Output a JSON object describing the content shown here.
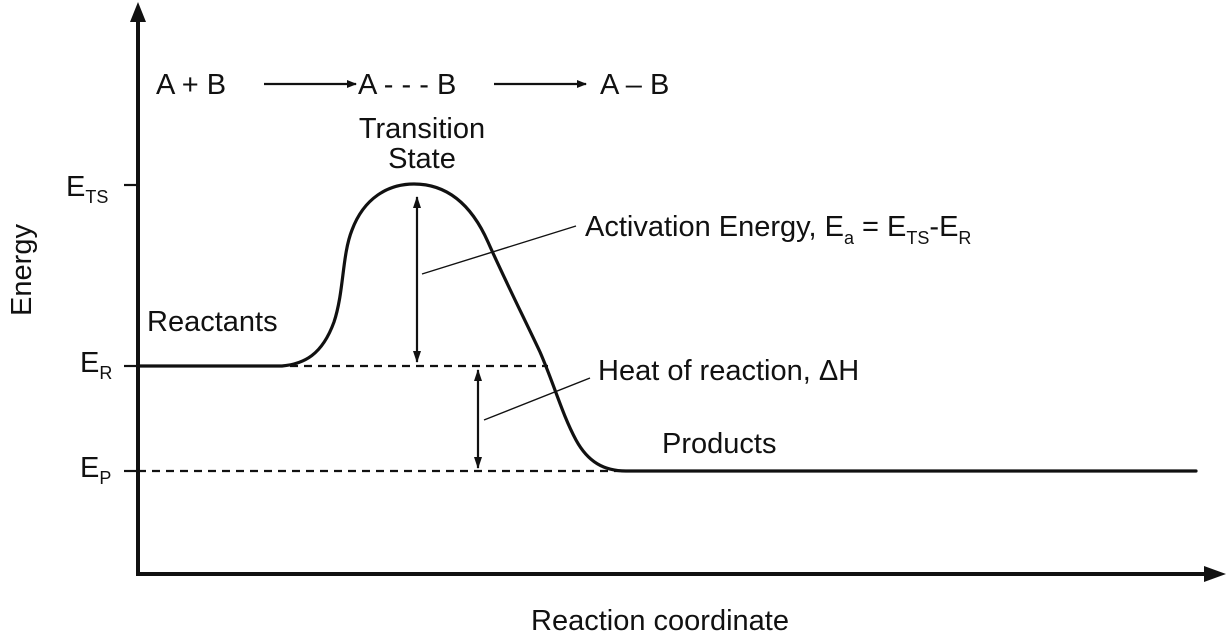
{
  "axes": {
    "x_label": "Reaction coordinate",
    "y_label": "Energy"
  },
  "energy_levels": {
    "ts": {
      "main": "E",
      "sub": "TS"
    },
    "r": {
      "main": "E",
      "sub": "R"
    },
    "p": {
      "main": "E",
      "sub": "P"
    }
  },
  "reaction": {
    "reactants": "A + B",
    "intermediate": "A - - - B",
    "product": "A – B"
  },
  "labels": {
    "transition_state_line1": "Transition",
    "transition_state_line2": "State",
    "reactants": "Reactants",
    "products": "Products",
    "activation_energy": {
      "prefix": "Activation Energy, E",
      "sub_a": "a",
      "equals": " = E",
      "sub_ts": "TS",
      "minus": "-E",
      "sub_r": "R"
    },
    "heat_of_reaction": "Heat of reaction, ΔH"
  }
}
